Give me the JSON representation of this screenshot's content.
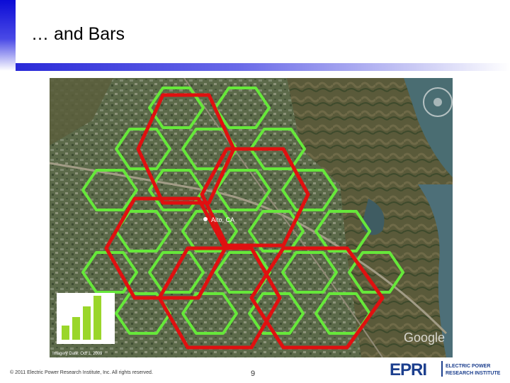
{
  "slide": {
    "title": "… and Bars",
    "page_number": "9",
    "footer": "© 2011 Electric Power Research Institute, Inc. All rights reserved."
  },
  "map": {
    "place_label": "Alto, CA",
    "imagery_date": "Imagery Date: Oct 1, 2009",
    "watermark": "Google",
    "colors": {
      "fine_hex": "#66e83a",
      "coarse_hex": "#e01010",
      "bars": "#9ad62a"
    },
    "signal_bars": {
      "filled": 4,
      "total": 4
    }
  },
  "logo": {
    "wordmark": "EPRI",
    "line1": "ELECTRIC POWER",
    "line2": "RESEARCH INSTITUTE"
  }
}
